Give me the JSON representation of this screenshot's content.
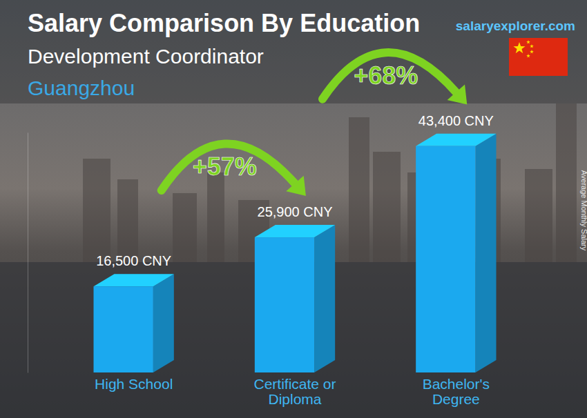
{
  "chart_data": {
    "type": "bar",
    "title": "Salary Comparison By Education",
    "subtitle": "Development Coordinator",
    "location": "Guangzhou",
    "source": "salaryexplorer.com",
    "y_label": "Average Monthly Salary",
    "categories": [
      "High School",
      "Certificate or Diploma",
      "Bachelor's Degree"
    ],
    "values": [
      16500,
      25900,
      43400
    ],
    "value_labels": [
      "16,500 CNY",
      "25,900 CNY",
      "43,400 CNY"
    ],
    "annotations": [
      "+57%",
      "+68%"
    ],
    "color": "#1ba9ef",
    "ylim": [
      0,
      46000
    ],
    "data_labels": true,
    "tick_labels": "x",
    "grid": false
  }
}
